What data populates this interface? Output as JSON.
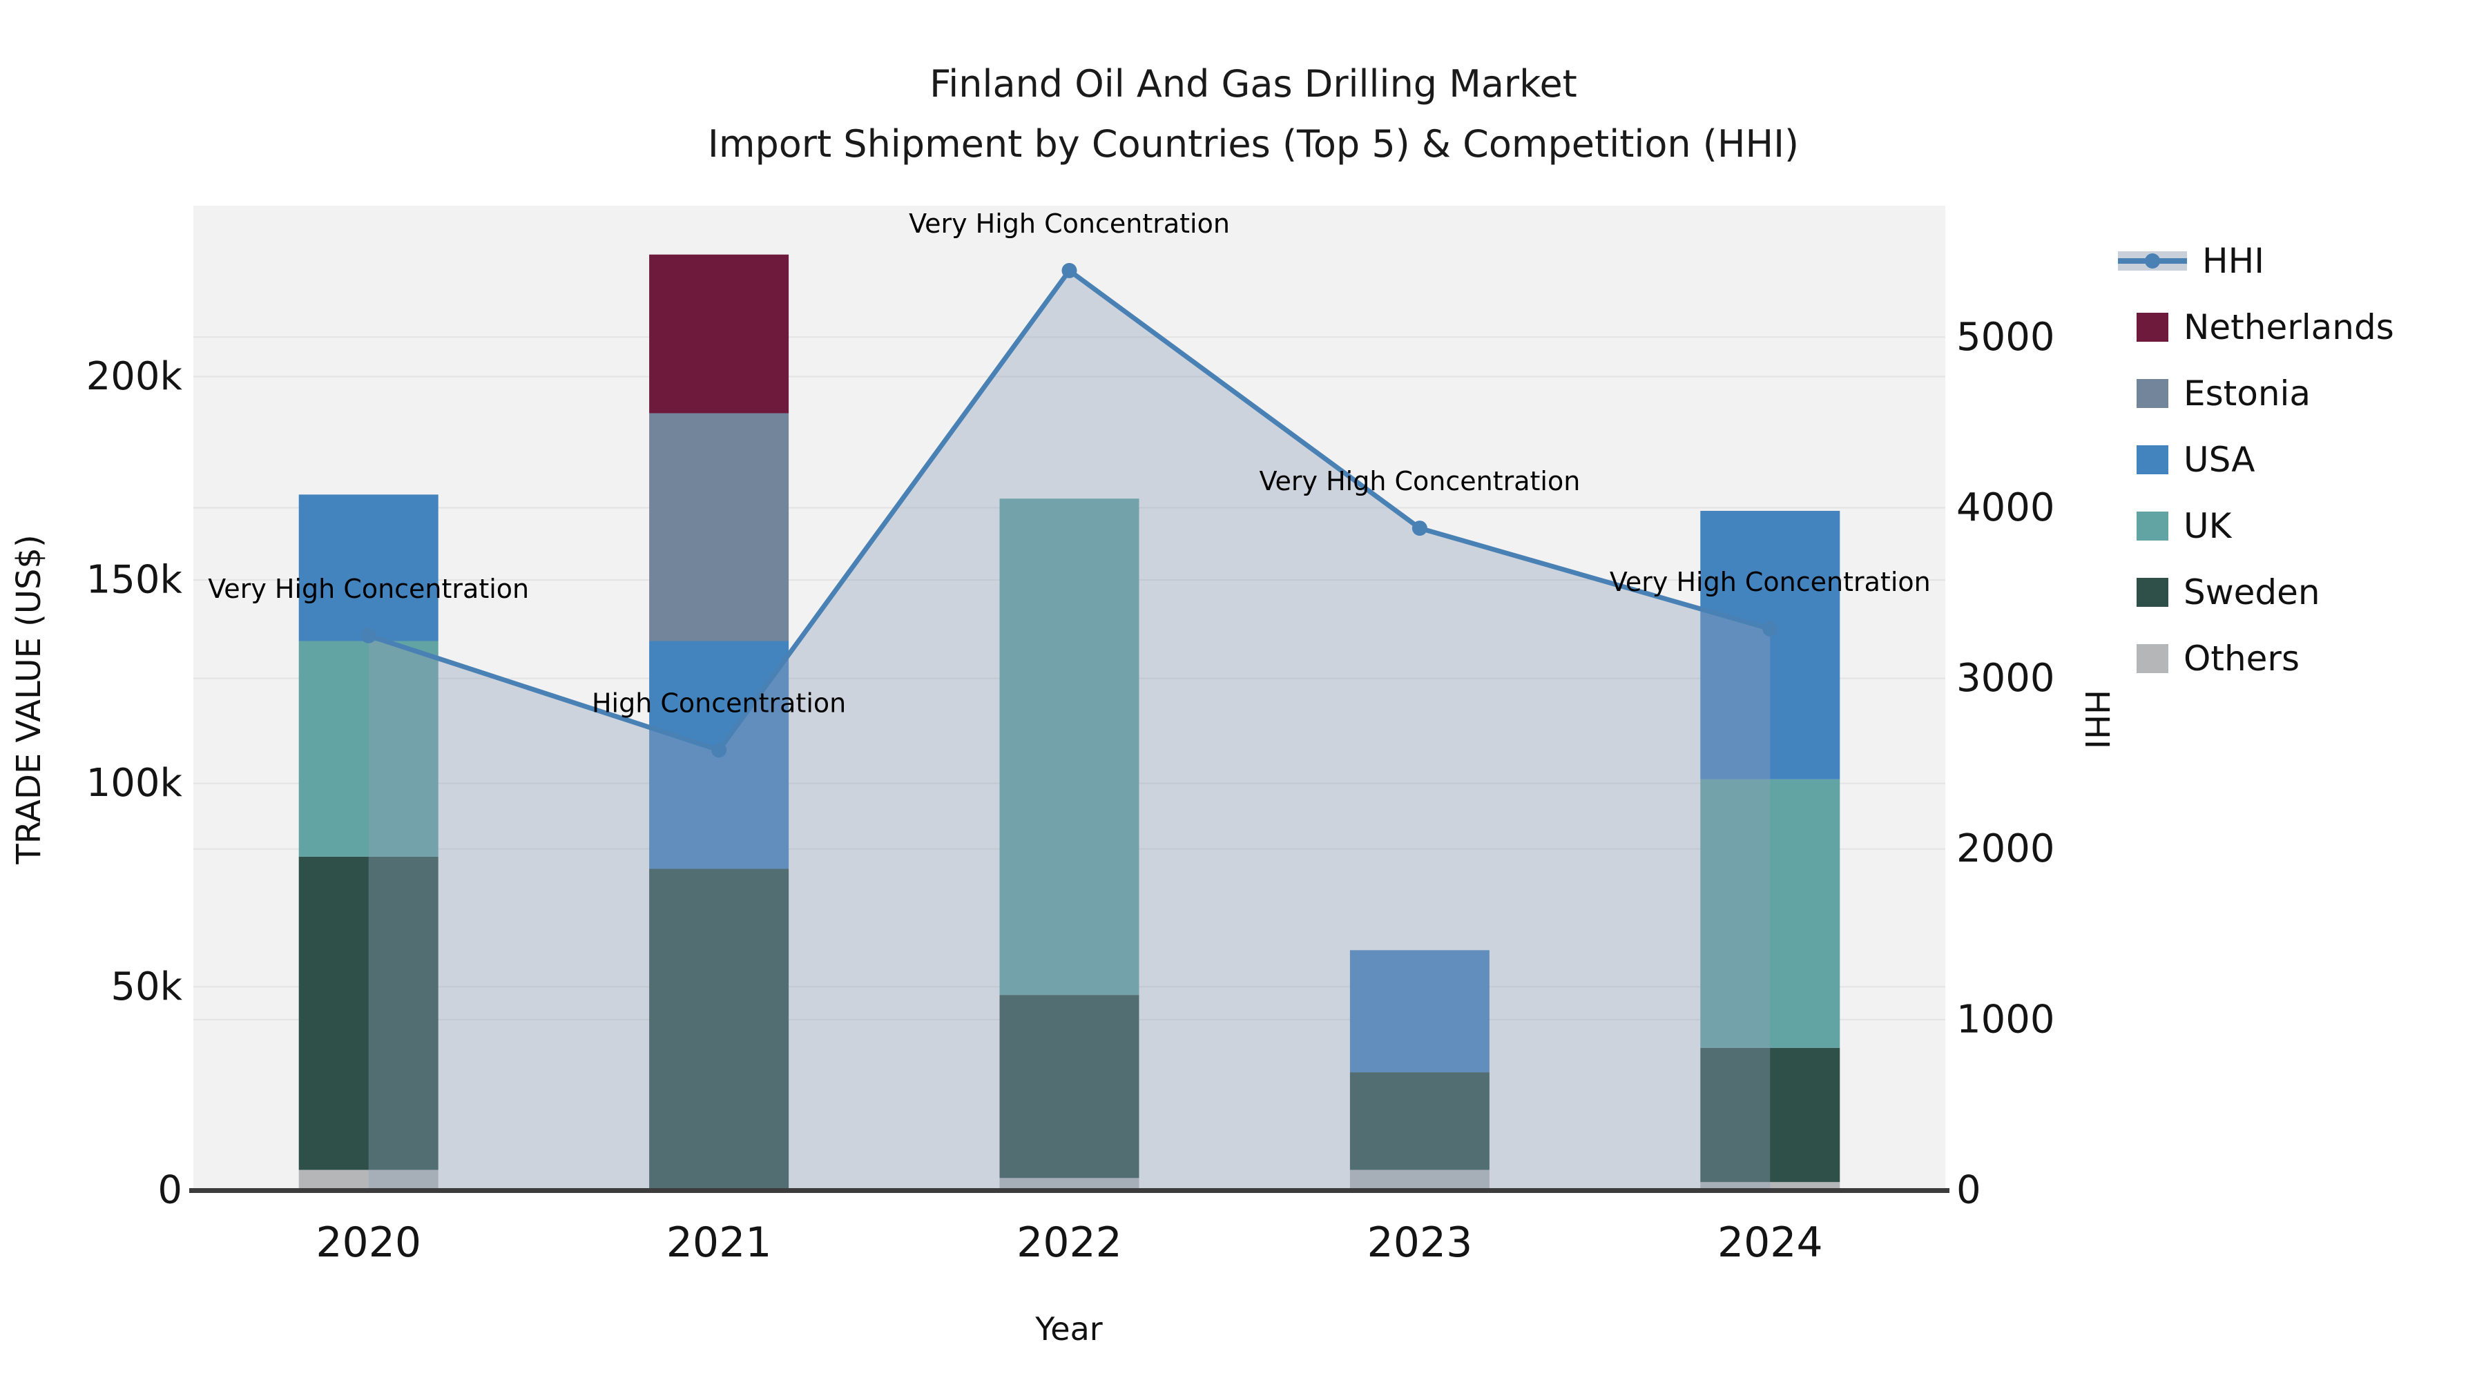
{
  "title": {
    "line1": "Finland Oil And Gas Drilling Market",
    "line2": "Import Shipment by Countries (Top 5) & Competition (HHI)"
  },
  "axes": {
    "x_title": "Year",
    "y_left_title": "TRADE VALUE (US$)",
    "y_right_title": "HHI"
  },
  "legend": {
    "items": [
      {
        "label": "HHI",
        "type": "line",
        "color": "#4A81B5",
        "band_color": "#C9D0DA"
      },
      {
        "label": "Netherlands",
        "type": "swatch",
        "color": "#6E1A3C"
      },
      {
        "label": "Estonia",
        "type": "swatch",
        "color": "#73859B"
      },
      {
        "label": "USA",
        "type": "swatch",
        "color": "#4484BE"
      },
      {
        "label": "UK",
        "type": "swatch",
        "color": "#62A3A4"
      },
      {
        "label": "Sweden",
        "type": "swatch",
        "color": "#2E5048"
      },
      {
        "label": "Others",
        "type": "swatch",
        "color": "#B4B6B8"
      }
    ]
  },
  "chart_data": {
    "type": "combo: stacked bar (trade value, left axis) + line with area fill (HHI, right axis)",
    "categories": [
      "2020",
      "2021",
      "2022",
      "2023",
      "2024"
    ],
    "stack_order_bottom_to_top": [
      "Others",
      "Sweden",
      "UK",
      "USA",
      "Estonia",
      "Netherlands"
    ],
    "series": [
      {
        "name": "Netherlands",
        "color": "#6E1A3C",
        "values": [
          0,
          39000,
          0,
          0,
          0
        ]
      },
      {
        "name": "Estonia",
        "color": "#73859B",
        "values": [
          0,
          56000,
          0,
          0,
          0
        ]
      },
      {
        "name": "USA",
        "color": "#4484BE",
        "values": [
          36000,
          56000,
          0,
          30000,
          66000
        ]
      },
      {
        "name": "UK",
        "color": "#62A3A4",
        "values": [
          53000,
          0,
          122000,
          0,
          66000
        ]
      },
      {
        "name": "Sweden",
        "color": "#2E5048",
        "values": [
          77000,
          79000,
          45000,
          24000,
          33000
        ]
      },
      {
        "name": "Others",
        "color": "#B4B6B8",
        "values": [
          5000,
          0,
          3000,
          5000,
          2000
        ]
      }
    ],
    "line_series": {
      "name": "HHI",
      "axis": "right",
      "color": "#4A81B5",
      "area_fill": "rgba(145,160,185,0.38)",
      "values": [
        3250,
        2580,
        5390,
        3880,
        3290
      ]
    },
    "annotations": [
      {
        "category": "2020",
        "label": "Very High Concentration"
      },
      {
        "category": "2021",
        "label": "High Concentration"
      },
      {
        "category": "2022",
        "label": "Very High Concentration"
      },
      {
        "category": "2023",
        "label": "Very High Concentration"
      },
      {
        "category": "2024",
        "label": "Very High Concentration"
      }
    ],
    "y_left": {
      "ticks": [
        0,
        50000,
        100000,
        150000,
        200000
      ],
      "tick_labels": [
        "0",
        "50k",
        "100k",
        "150k",
        "200k"
      ],
      "range": [
        0,
        242000
      ]
    },
    "y_right": {
      "ticks": [
        0,
        1000,
        2000,
        3000,
        4000,
        5000
      ],
      "tick_labels": [
        "0",
        "1000",
        "2000",
        "3000",
        "4000",
        "5000"
      ],
      "range": [
        0,
        5770
      ]
    },
    "plot_background": "#F2F2F2",
    "grid_color": "#E3E3E3",
    "axis_line_color": "#3C3C3C",
    "legend_position": "right"
  }
}
